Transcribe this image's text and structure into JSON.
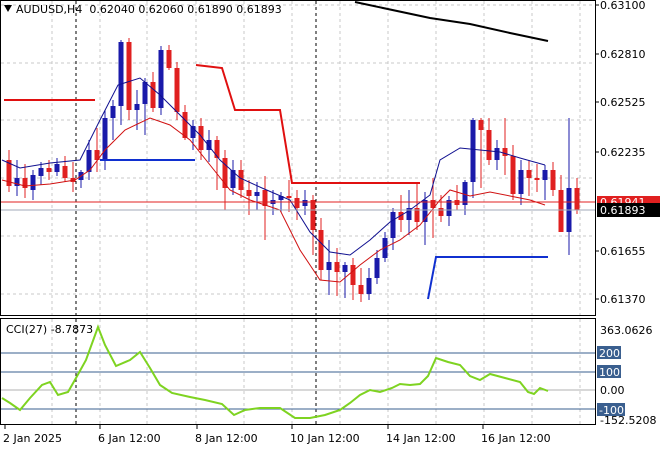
{
  "header": {
    "symbol": "AUDUSD,H4",
    "ohlc": "0.62040 0.62060 0.61890 0.61893"
  },
  "indicator": {
    "name": "CCI(27)",
    "value": "-8.7873",
    "max_label": "363.0626",
    "min_label": "-152.5208"
  },
  "price_axis": {
    "ticks": [
      "0.63100",
      "0.62810",
      "0.62525",
      "0.62235",
      "0.61655",
      "0.61370"
    ],
    "current_price": "0.61893",
    "red_line_price": "0.61941"
  },
  "cci_axis": {
    "ticks": [
      "200",
      "100",
      "0.00",
      "-100"
    ]
  },
  "time_axis": {
    "labels": [
      "2 Jan 2025",
      "6 Jan 12:00",
      "8 Jan 12:00",
      "10 Jan 12:00",
      "14 Jan 12:00",
      "16 Jan 12:00"
    ]
  },
  "colors": {
    "bull": "#1a1aaa",
    "bear": "#e02020",
    "ma_slow": "#000000",
    "ma_fast": "#101090",
    "ma_red": "#d01010",
    "cci": "#7ed321",
    "level_box": "#3a5f8f"
  }
}
